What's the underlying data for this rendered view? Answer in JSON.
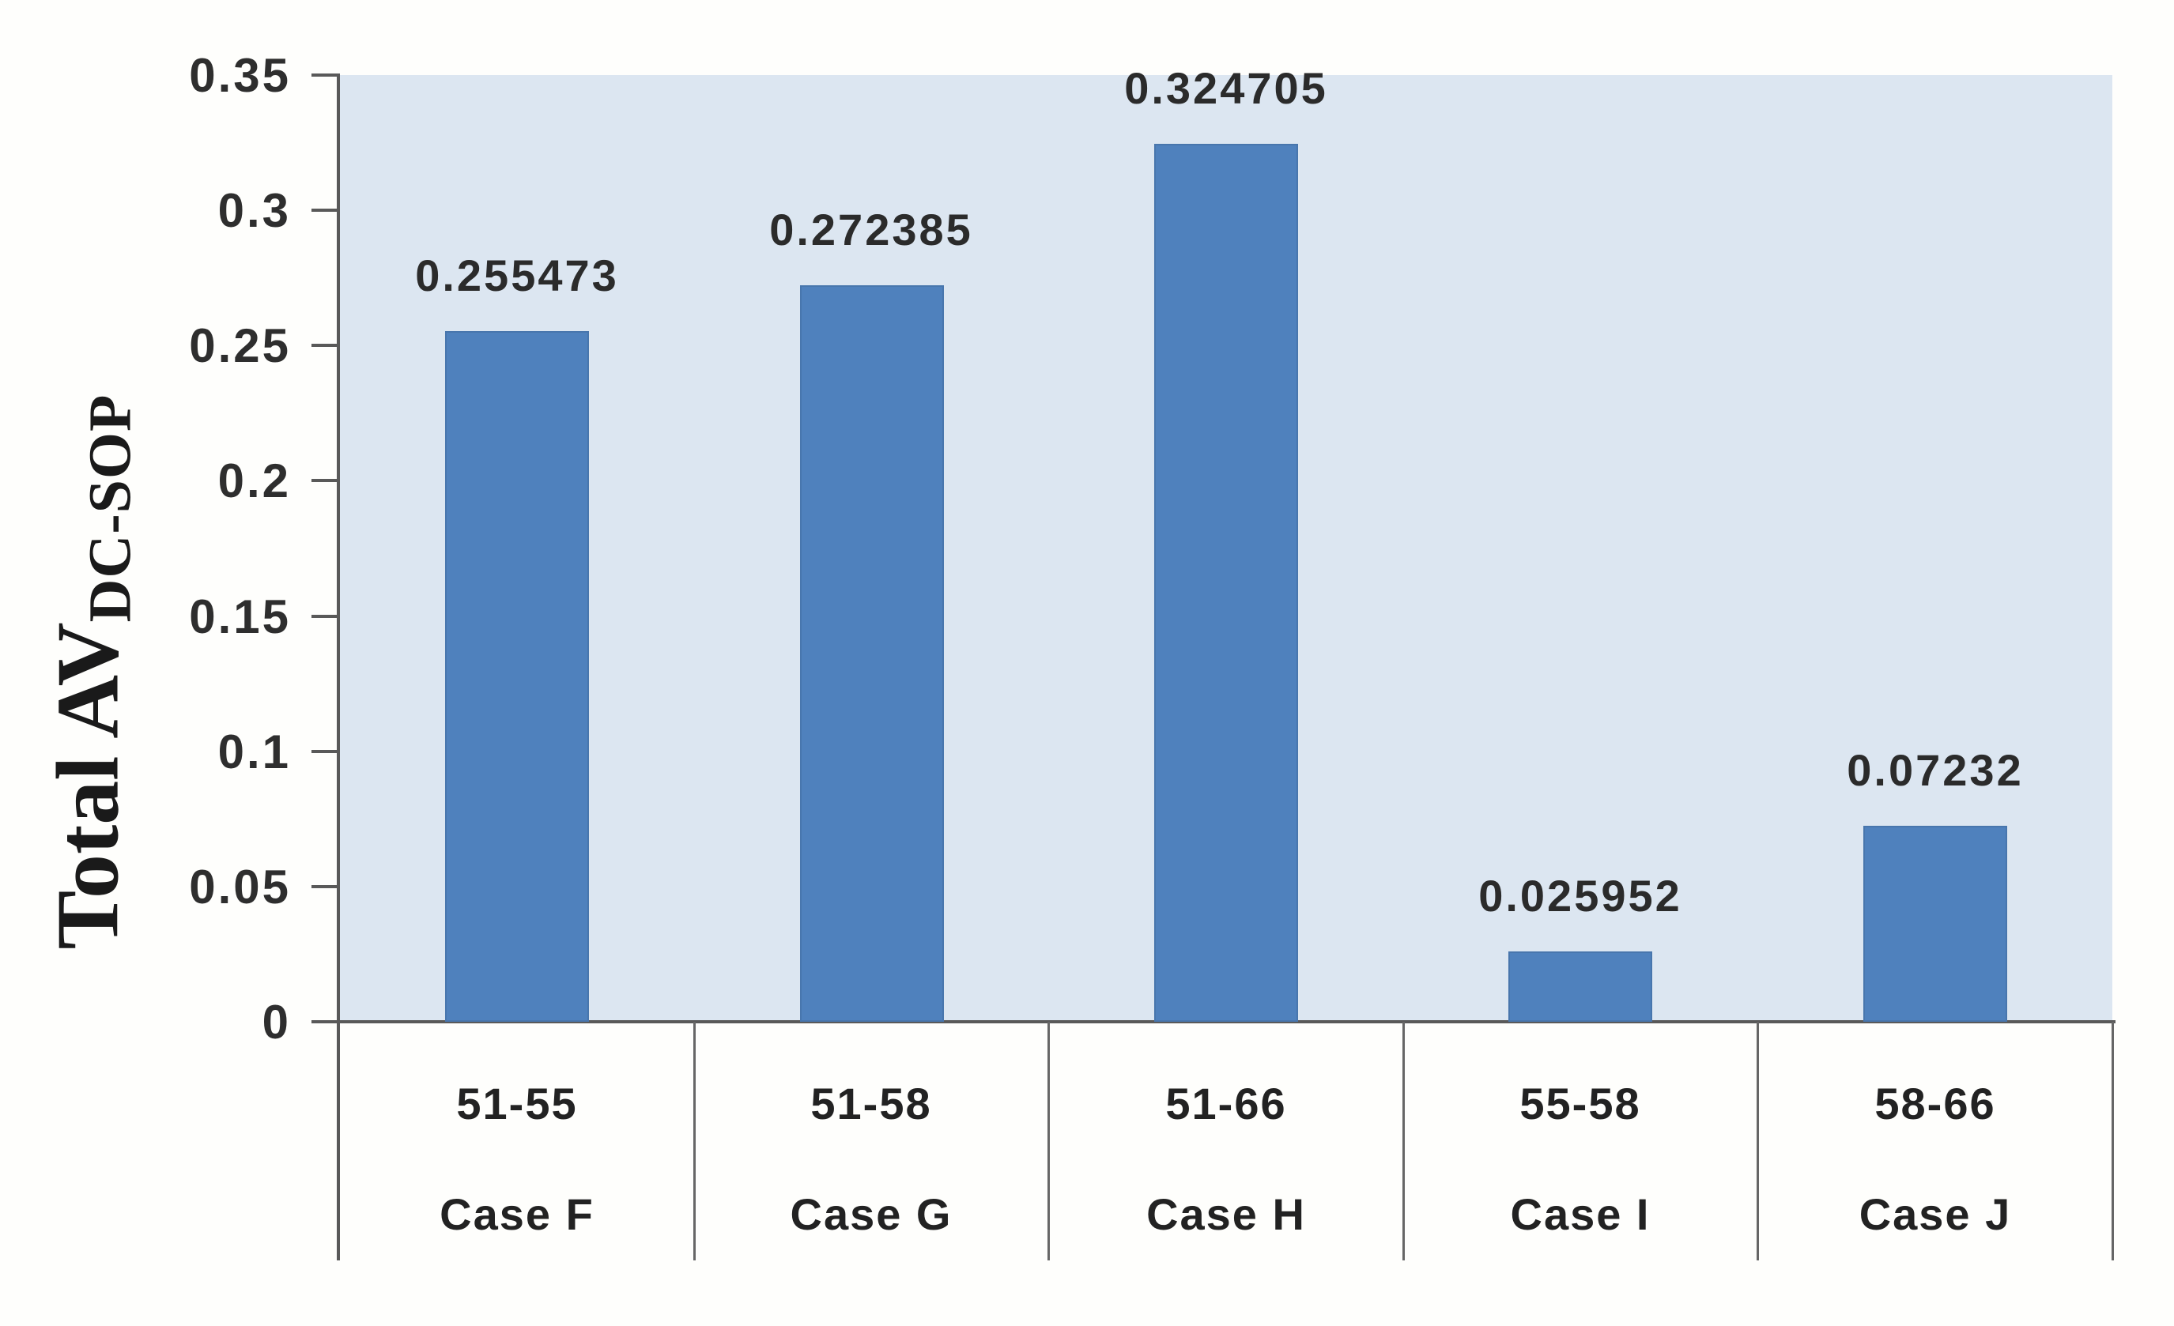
{
  "chart_data": {
    "type": "bar",
    "categories": [
      "51-55",
      "51-58",
      "51-66",
      "55-58",
      "58-66"
    ],
    "case_labels": [
      "Case F",
      "Case G",
      "Case H",
      "Case I",
      "Case J"
    ],
    "values": [
      0.255473,
      0.272385,
      0.324705,
      0.025952,
      0.07232
    ],
    "value_labels": [
      "0.255473",
      "0.272385",
      "0.324705",
      "0.025952",
      "0.07232"
    ],
    "title": "",
    "xlabel": "",
    "ylabel_main": "Total AV",
    "ylabel_sub": "DC-SOP",
    "yticks": [
      "0.35",
      "0.3",
      "0.25",
      "0.2",
      "0.15",
      "0.1",
      "0.05",
      "0"
    ],
    "ylim": [
      0,
      0.35
    ],
    "grid": "off",
    "legend": "none",
    "bar_color": "#4f81bd",
    "plot_bg_color": "#dce6f1",
    "axis_color": "#595959"
  }
}
